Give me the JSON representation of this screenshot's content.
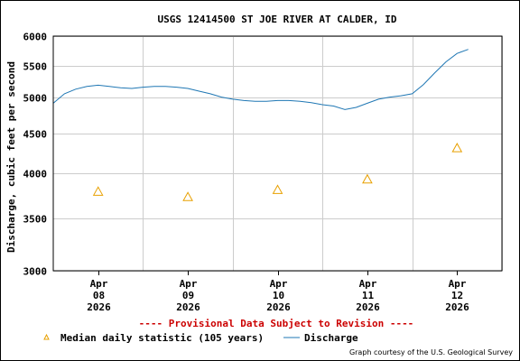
{
  "chart_data": {
    "type": "line",
    "title": "USGS 12414500 ST JOE RIVER AT CALDER, ID",
    "ylabel": "Discharge, cubic feet per second",
    "xlabel": "",
    "y_scale": "log",
    "ylim": [
      3000,
      6000
    ],
    "y_ticks": [
      3000,
      3500,
      4000,
      4500,
      5000,
      5500,
      6000
    ],
    "x_ticks": [
      {
        "line1": "Apr",
        "line2": "08",
        "line3": "2026"
      },
      {
        "line1": "Apr",
        "line2": "09",
        "line3": "2026"
      },
      {
        "line1": "Apr",
        "line2": "10",
        "line3": "2026"
      },
      {
        "line1": "Apr",
        "line2": "11",
        "line3": "2026"
      },
      {
        "line1": "Apr",
        "line2": "12",
        "line3": "2026"
      }
    ],
    "xlim": [
      "2026-04-07T12:00",
      "2026-04-12T12:00"
    ],
    "grid": true,
    "series": [
      {
        "name": "Discharge",
        "kind": "line",
        "color": "#1f77b4",
        "x": [
          "2026-04-07T12:00",
          "2026-04-07T15:00",
          "2026-04-07T18:00",
          "2026-04-07T21:00",
          "2026-04-08T00:00",
          "2026-04-08T03:00",
          "2026-04-08T06:00",
          "2026-04-08T09:00",
          "2026-04-08T12:00",
          "2026-04-08T15:00",
          "2026-04-08T18:00",
          "2026-04-08T21:00",
          "2026-04-09T00:00",
          "2026-04-09T03:00",
          "2026-04-09T06:00",
          "2026-04-09T09:00",
          "2026-04-09T12:00",
          "2026-04-09T15:00",
          "2026-04-09T18:00",
          "2026-04-09T21:00",
          "2026-04-10T00:00",
          "2026-04-10T03:00",
          "2026-04-10T06:00",
          "2026-04-10T09:00",
          "2026-04-10T12:00",
          "2026-04-10T15:00",
          "2026-04-10T18:00",
          "2026-04-10T21:00",
          "2026-04-11T00:00",
          "2026-04-11T03:00",
          "2026-04-11T06:00",
          "2026-04-11T09:00",
          "2026-04-11T12:00",
          "2026-04-11T15:00",
          "2026-04-11T18:00",
          "2026-04-11T21:00",
          "2026-04-12T00:00",
          "2026-04-12T03:00"
        ],
        "y": [
          4920,
          5060,
          5130,
          5170,
          5190,
          5170,
          5150,
          5140,
          5160,
          5170,
          5170,
          5160,
          5140,
          5100,
          5060,
          5010,
          4980,
          4960,
          4950,
          4950,
          4960,
          4960,
          4950,
          4930,
          4900,
          4880,
          4830,
          4860,
          4920,
          4980,
          5010,
          5030,
          5060,
          5200,
          5380,
          5560,
          5700,
          5770
        ]
      },
      {
        "name": "Median daily statistic (105 years)",
        "kind": "marker",
        "marker": "triangle",
        "color": "#e8a000",
        "x": [
          "2026-04-08T00:00",
          "2026-04-09T00:00",
          "2026-04-10T00:00",
          "2026-04-11T00:00",
          "2026-04-12T00:00"
        ],
        "y": [
          3790,
          3730,
          3810,
          3930,
          4310
        ]
      }
    ],
    "legend": [
      {
        "label": "Median daily statistic (105 years)",
        "symbol": "triangle",
        "color": "#e8a000"
      },
      {
        "label": "Discharge",
        "symbol": "line",
        "color": "#1f77b4"
      }
    ],
    "legend_position": "bottom",
    "annotation": "---- Provisional Data Subject to Revision ----",
    "credit": "Graph courtesy of the U.S. Geological Survey"
  }
}
